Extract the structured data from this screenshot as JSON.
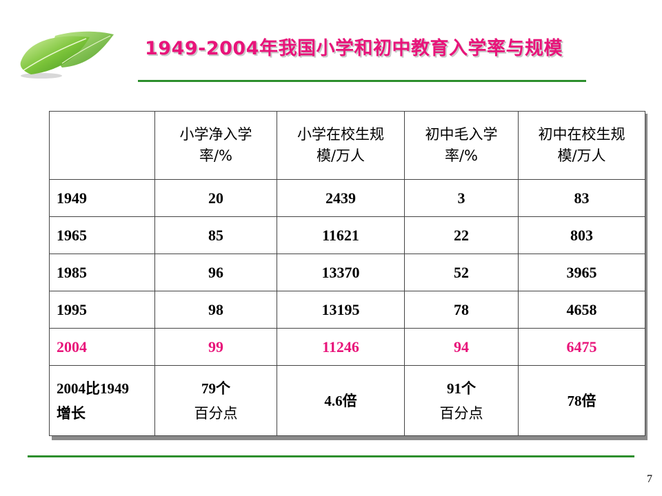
{
  "title": "1949-2004年我国小学和初中教育入学率与规模",
  "page_number": "7",
  "table": {
    "headers": [
      "",
      "小学净入学率/%",
      "小学在校生规模/万人",
      "初中毛入学率/%",
      "初中在校生规模/万人"
    ],
    "header_lines": [
      [
        "",
        ""
      ],
      [
        "小学净入学",
        "率/%"
      ],
      [
        "小学在校生规",
        "模/万人"
      ],
      [
        "初中毛入学",
        "率/%"
      ],
      [
        "初中在校生规",
        "模/万人"
      ]
    ],
    "rows": [
      {
        "year": "1949",
        "values": [
          "20",
          "2439",
          "3",
          "83"
        ]
      },
      {
        "year": "1965",
        "values": [
          "85",
          "11621",
          "22",
          "803"
        ]
      },
      {
        "year": "1985",
        "values": [
          "96",
          "13370",
          "52",
          "3965"
        ]
      },
      {
        "year": "1995",
        "values": [
          "98",
          "13195",
          "78",
          "4658"
        ]
      },
      {
        "year": "2004",
        "values": [
          "99",
          "11246",
          "94",
          "6475"
        ]
      }
    ],
    "growth_row": {
      "label_line1": "2004比1949",
      "label_line2": "增长",
      "c1_line1": "79个",
      "c1_line2": "百分点",
      "c2": "4.6倍",
      "c3_line1": "91个",
      "c3_line2": "百分点",
      "c4": "78倍"
    }
  },
  "colors": {
    "title": "#e8147a",
    "highlight_row": "#e8147a",
    "rule": "#2d8f2d"
  },
  "icons": {
    "logo": "leaf-icon"
  }
}
